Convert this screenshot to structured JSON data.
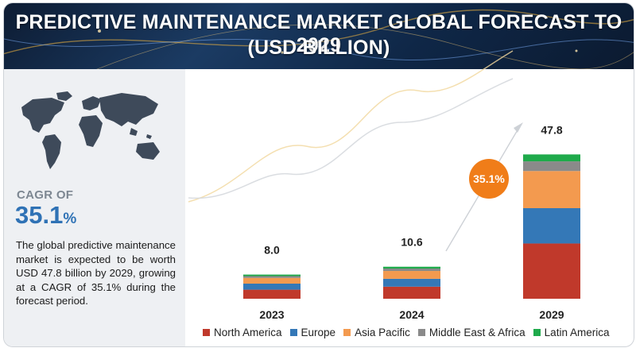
{
  "header": {
    "title_line1": "PREDICTIVE MAINTENANCE MARKET GLOBAL FORECAST TO 2029",
    "title_line2": "(USD BILLION)"
  },
  "summary": {
    "cagr_label": "CAGR OF",
    "cagr_number": "35.1",
    "cagr_unit": "%",
    "description": "The global predictive maintenance market is expected to be worth USD 47.8 billion by 2029, growing at a CAGR of 35.1% during the forecast period."
  },
  "chart_data": {
    "type": "bar",
    "stacked": true,
    "categories": [
      "2023",
      "2024",
      "2029"
    ],
    "totals": [
      "8.0",
      "10.6",
      "47.8"
    ],
    "cagr_badge": "35.1%",
    "series": [
      {
        "name": "North America",
        "color": "#c0392b",
        "values": [
          3.0,
          4.0,
          18.3
        ]
      },
      {
        "name": "Europe",
        "color": "#3478b7",
        "values": [
          2.0,
          2.6,
          11.7
        ]
      },
      {
        "name": "Asia Pacific",
        "color": "#f39a4f",
        "values": [
          1.9,
          2.6,
          12.3
        ]
      },
      {
        "name": "Middle East & Africa",
        "color": "#8a8a8a",
        "values": [
          0.6,
          0.8,
          3.2
        ]
      },
      {
        "name": "Latin America",
        "color": "#1faa4b",
        "values": [
          0.5,
          0.6,
          2.3
        ]
      }
    ],
    "legend_position": "bottom",
    "grid": false
  },
  "colors": {
    "header_bg": "#13294a",
    "accent_orange": "#f07d19",
    "cagr_blue": "#2f72b5"
  }
}
